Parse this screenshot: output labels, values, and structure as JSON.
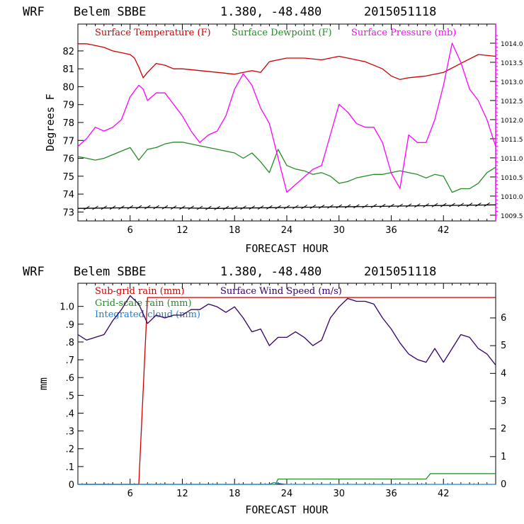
{
  "chart_data": [
    {
      "type": "line",
      "header": {
        "model": "WRF",
        "station": "Belem SBBE",
        "coords": "1.380, -48.480",
        "datetime": "2015051118"
      },
      "xlabel": "FORECAST HOUR",
      "ylabel": "Degrees F",
      "xlim": [
        0,
        48
      ],
      "xticks": [
        "6",
        "12",
        "18",
        "24",
        "30",
        "36",
        "42"
      ],
      "ylim": [
        72.5,
        83.5
      ],
      "yticks": [
        "73",
        "74",
        "75",
        "76",
        "77",
        "78",
        "79",
        "80",
        "81",
        "82"
      ],
      "y2lim": [
        1009.35,
        1014.5
      ],
      "y2ticks": [
        "1009.5",
        "1010.0",
        "1010.5",
        "1011.0",
        "1011.5",
        "1012.0",
        "1012.5",
        "1013.0",
        "1013.5",
        "1014.0"
      ],
      "legend_placement": "top-inside",
      "grid": false,
      "series": [
        {
          "name": "Surface Temperature (F)",
          "color": "#cc0000",
          "axis": "left",
          "x": [
            0,
            1,
            2,
            3,
            4,
            5,
            6,
            6.5,
            7,
            7.5,
            8,
            9,
            10,
            11,
            12,
            14,
            16,
            18,
            19,
            20,
            21,
            22,
            24,
            26,
            28,
            30,
            31,
            33,
            35,
            36,
            37,
            38,
            40,
            42,
            44,
            46,
            48
          ],
          "values": [
            82.4,
            82.4,
            82.3,
            82.2,
            82.0,
            81.9,
            81.8,
            81.6,
            81.1,
            80.5,
            80.8,
            81.3,
            81.2,
            81.0,
            81.0,
            80.9,
            80.8,
            80.7,
            80.8,
            80.9,
            80.8,
            81.4,
            81.6,
            81.6,
            81.5,
            81.7,
            81.6,
            81.4,
            81.0,
            80.6,
            80.4,
            80.5,
            80.6,
            80.8,
            81.3,
            81.8,
            81.7
          ]
        },
        {
          "name": "Surface Dewpoint (F)",
          "color": "#228b22",
          "axis": "left",
          "x": [
            0,
            1,
            2,
            3,
            4,
            5,
            6,
            7,
            8,
            9,
            10,
            11,
            12,
            14,
            16,
            18,
            19,
            20,
            21,
            22,
            23,
            24,
            25,
            26,
            27,
            28,
            29,
            30,
            31,
            32,
            33,
            34,
            35,
            36,
            37,
            38,
            39,
            40,
            41,
            42,
            43,
            44,
            45,
            46,
            47,
            48
          ],
          "values": [
            76.1,
            76.0,
            75.9,
            76.0,
            76.2,
            76.4,
            76.6,
            75.9,
            76.5,
            76.6,
            76.8,
            76.9,
            76.9,
            76.7,
            76.5,
            76.3,
            76.0,
            76.3,
            75.8,
            75.2,
            76.5,
            75.6,
            75.4,
            75.3,
            75.1,
            75.2,
            75.0,
            74.6,
            74.7,
            74.9,
            75.0,
            75.1,
            75.1,
            75.2,
            75.3,
            75.2,
            75.1,
            74.9,
            75.1,
            75.0,
            74.1,
            74.3,
            74.3,
            74.6,
            75.2,
            75.5
          ]
        },
        {
          "name": "Surface Pressure (mb)",
          "color": "#ff00ff",
          "axis": "right",
          "x": [
            0,
            1,
            2,
            3,
            4,
            5,
            6,
            7,
            7.5,
            8,
            9,
            10,
            11,
            12,
            13,
            14,
            15,
            16,
            17,
            18,
            19,
            20,
            21,
            22,
            23,
            24,
            25,
            26,
            27,
            28,
            29,
            30,
            31,
            32,
            33,
            34,
            35,
            36,
            37,
            38,
            39,
            40,
            41,
            42,
            43,
            44,
            45,
            46,
            47,
            48
          ],
          "values": [
            1011.3,
            1011.5,
            1011.8,
            1011.7,
            1011.8,
            1012.0,
            1012.6,
            1012.9,
            1012.8,
            1012.5,
            1012.7,
            1012.7,
            1012.4,
            1012.1,
            1011.7,
            1011.4,
            1011.6,
            1011.7,
            1012.1,
            1012.8,
            1013.2,
            1012.9,
            1012.3,
            1011.9,
            1011.0,
            1010.1,
            1010.3,
            1010.5,
            1010.7,
            1010.8,
            1011.6,
            1012.4,
            1012.2,
            1011.9,
            1011.8,
            1011.8,
            1011.4,
            1010.6,
            1010.2,
            1011.6,
            1011.4,
            1011.4,
            1012.0,
            1012.9,
            1014.0,
            1013.5,
            1012.8,
            1012.5,
            1012.0,
            1011.3
          ]
        },
        {
          "name": "",
          "color": "#000000",
          "axis": "left",
          "x": [
            0,
            8,
            16,
            24,
            32,
            40,
            48
          ],
          "values": [
            73.2,
            73.25,
            73.2,
            73.25,
            73.3,
            73.35,
            73.4
          ]
        }
      ]
    },
    {
      "type": "line",
      "header": {
        "model": "WRF",
        "station": "Belem SBBE",
        "coords": "1.380, -48.480",
        "datetime": "2015051118"
      },
      "xlabel": "FORECAST HOUR",
      "ylabel": "mm",
      "xlim": [
        0,
        48
      ],
      "xticks": [
        "6",
        "12",
        "18",
        "24",
        "30",
        "36",
        "42"
      ],
      "ylim": [
        0,
        1.13
      ],
      "yticks": [
        "0",
        ".1",
        ".2",
        ".3",
        ".4",
        ".5",
        ".6",
        ".7",
        ".8",
        ".9",
        "1.0"
      ],
      "y2lim": [
        0,
        7.25
      ],
      "y2ticks": [
        "0",
        "1",
        "2",
        "3",
        "4",
        "5",
        "6"
      ],
      "legend_placement": "top-inside",
      "grid": false,
      "series": [
        {
          "name": "Sub-grid rain (mm)",
          "color": "#cc0000",
          "axis": "left",
          "x": [
            0,
            7.0,
            8.0,
            48
          ],
          "values": [
            0,
            0,
            1.05,
            1.05
          ]
        },
        {
          "name": "Grid-scale rain (mm)",
          "color": "#228b22",
          "axis": "left",
          "x": [
            0,
            22.7,
            23.0,
            40,
            40.5,
            48
          ],
          "values": [
            0,
            0,
            0.03,
            0.03,
            0.06,
            0.06
          ]
        },
        {
          "name": "Integrated cloud (mm)",
          "color": "#1e7fd0",
          "axis": "left",
          "x": [
            0,
            22,
            22.5,
            23,
            24,
            48
          ],
          "values": [
            0,
            0,
            0.01,
            0.005,
            0.0,
            0.0
          ]
        },
        {
          "name": "Surface Wind Speed (m/s)",
          "color": "#330066",
          "axis": "right",
          "x": [
            0,
            1,
            2,
            3,
            4,
            5,
            6,
            7,
            8,
            9,
            10,
            11,
            12,
            13,
            14,
            15,
            16,
            17,
            18,
            19,
            20,
            21,
            22,
            23,
            24,
            25,
            26,
            27,
            28,
            29,
            30,
            31,
            32,
            33,
            34,
            35,
            36,
            37,
            38,
            39,
            40,
            41,
            42,
            43,
            44,
            45,
            46,
            47,
            48
          ],
          "values": [
            5.4,
            5.2,
            5.3,
            5.4,
            5.9,
            6.3,
            6.8,
            6.5,
            5.8,
            6.1,
            6.0,
            6.1,
            6.1,
            6.3,
            6.3,
            6.5,
            6.4,
            6.2,
            6.4,
            6.0,
            5.5,
            5.6,
            5.0,
            5.3,
            5.3,
            5.5,
            5.3,
            5.0,
            5.2,
            6.0,
            6.4,
            6.7,
            6.6,
            6.6,
            6.5,
            6.0,
            5.6,
            5.1,
            4.7,
            4.5,
            4.4,
            4.9,
            4.4,
            4.9,
            5.4,
            5.3,
            4.9,
            4.7,
            4.3
          ]
        }
      ]
    }
  ]
}
